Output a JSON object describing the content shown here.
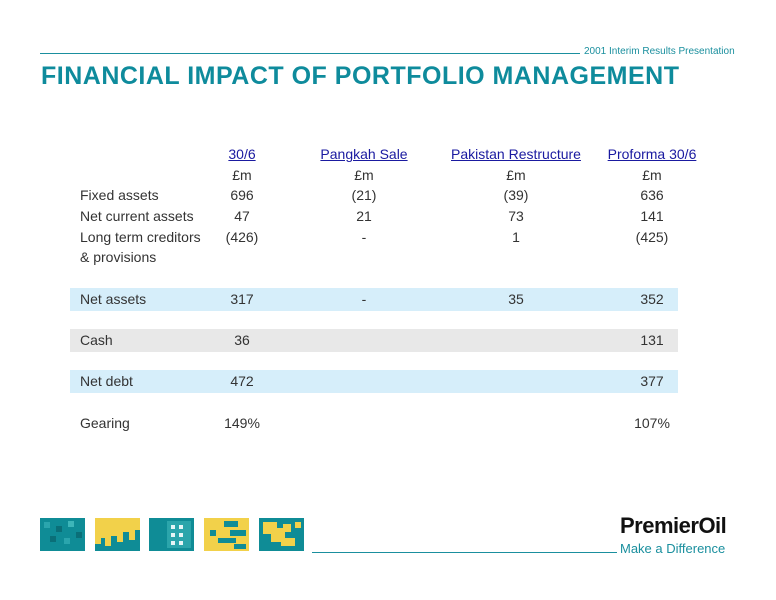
{
  "header": {
    "note": "2001 Interim Results Presentation"
  },
  "title": "FINANCIAL IMPACT OF PORTFOLIO MANAGEMENT",
  "table": {
    "columns": [
      "30/6",
      "Pangkah Sale",
      "Pakistan Restructure",
      "Proforma 30/6"
    ],
    "units": [
      "£m",
      "£m",
      "£m",
      "£m"
    ],
    "rows": [
      {
        "label": "Fixed assets",
        "values": [
          "696",
          "(21)",
          "(39)",
          "636"
        ]
      },
      {
        "label": "Net current assets",
        "values": [
          "47",
          "21",
          "73",
          "141"
        ]
      },
      {
        "label": "Long term creditors",
        "label2": "& provisions",
        "values": [
          "(426)",
          "-",
          "1",
          "(425)"
        ]
      },
      {
        "label": "Net assets",
        "values": [
          "317",
          "-",
          "35",
          "352"
        ],
        "band": "blue"
      },
      {
        "label": "Cash",
        "values": [
          "36",
          "",
          "",
          "131"
        ],
        "band": "grey"
      },
      {
        "label": "Net debt",
        "values": [
          "472",
          "",
          "",
          "377"
        ],
        "band": "blue"
      },
      {
        "label": "Gearing",
        "values": [
          "149%",
          "",
          "",
          "107%"
        ]
      }
    ]
  },
  "footer": {
    "brand": "PremierOil",
    "tagline": "Make a Difference"
  },
  "colors": {
    "accent": "#0e8b9c",
    "band_blue": "#d6eefa",
    "band_grey": "#e8e8e8",
    "tile_teal": "#0f8c96",
    "tile_yellow": "#f2d14a"
  }
}
